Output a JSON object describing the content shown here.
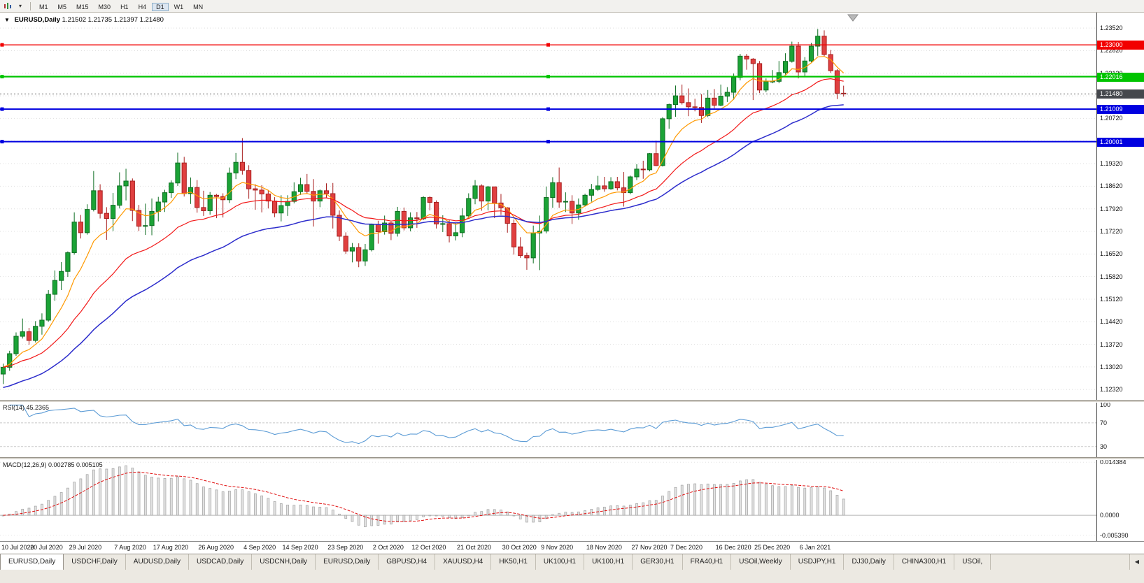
{
  "toolbar": {
    "timeframes": [
      "M1",
      "M5",
      "M15",
      "M30",
      "H1",
      "H4",
      "D1",
      "W1",
      "MN"
    ],
    "active_timeframe": "D1",
    "caret_glyph": "▾"
  },
  "chart": {
    "symbol_period": "EURUSD,Daily",
    "ohlc_text": "1.21502 1.21735 1.21397 1.21480",
    "collapse_glyph": "▼",
    "price_min": 1.12,
    "price_max": 1.24,
    "y_axis_labels": [
      "1.23520",
      "1.22820",
      "1.22120",
      "1.21420",
      "1.20720",
      "1.20020",
      "1.19320",
      "1.18620",
      "1.17920",
      "1.17220",
      "1.16520",
      "1.15820",
      "1.15120",
      "1.14420",
      "1.13720",
      "1.13020",
      "1.12320"
    ],
    "hlines": [
      {
        "price": 1.23,
        "label": "1.23000",
        "color": "#f20000",
        "thickness": 1.4
      },
      {
        "price": 1.22016,
        "label": "1.22016",
        "color": "#00c400",
        "thickness": 2.2
      },
      {
        "price": 1.21009,
        "label": "1.21009",
        "color": "#0000e0",
        "thickness": 2
      },
      {
        "price": 1.20001,
        "label": "1.20001",
        "color": "#0000e0",
        "thickness": 2
      }
    ],
    "current_price": {
      "value": 1.2148,
      "label": "1.21480",
      "badge_color": "#45484d"
    },
    "up_color": "#1ba336",
    "up_border": "#0e6e22",
    "down_color": "#e04040",
    "down_border": "#a81f1f",
    "moving_averages": [
      {
        "name": "ma-fast-orange",
        "period": 8,
        "color": "#ff9900",
        "width": 1.2
      },
      {
        "name": "ma-mid-red",
        "period": 22,
        "color": "#f21818",
        "width": 1.2
      },
      {
        "name": "ma-slow-blue",
        "period": 40,
        "color": "#2d2dcc",
        "width": 1.5,
        "seed": 1.1235
      }
    ],
    "x_labels": [
      {
        "index": 0,
        "text": "10 Jul 2020"
      },
      {
        "index": 7,
        "text": "20 Jul 2020"
      },
      {
        "index": 13,
        "text": "29 Jul 2020"
      },
      {
        "index": 20,
        "text": "7 Aug 2020"
      },
      {
        "index": 26,
        "text": "17 Aug 2020"
      },
      {
        "index": 33,
        "text": "26 Aug 2020"
      },
      {
        "index": 40,
        "text": "4 Sep 2020"
      },
      {
        "index": 46,
        "text": "14 Sep 2020"
      },
      {
        "index": 53,
        "text": "23 Sep 2020"
      },
      {
        "index": 60,
        "text": "2 Oct 2020"
      },
      {
        "index": 66,
        "text": "12 Oct 2020"
      },
      {
        "index": 73,
        "text": "21 Oct 2020"
      },
      {
        "index": 80,
        "text": "30 Oct 2020"
      },
      {
        "index": 86,
        "text": "9 Nov 2020"
      },
      {
        "index": 93,
        "text": "18 Nov 2020"
      },
      {
        "index": 100,
        "text": "27 Nov 2020"
      },
      {
        "index": 106,
        "text": "7 Dec 2020"
      },
      {
        "index": 113,
        "text": "16 Dec 2020"
      },
      {
        "index": 119,
        "text": "25 Dec 2020"
      },
      {
        "index": 126,
        "text": "6 Jan 2021"
      }
    ],
    "candles": [
      [
        1.128,
        1.1312,
        1.1249,
        1.1301
      ],
      [
        1.1301,
        1.1352,
        1.129,
        1.1343
      ],
      [
        1.1343,
        1.1409,
        1.1336,
        1.1397
      ],
      [
        1.1397,
        1.1452,
        1.139,
        1.1411
      ],
      [
        1.1411,
        1.1423,
        1.1371,
        1.1384
      ],
      [
        1.1384,
        1.1444,
        1.1378,
        1.1428
      ],
      [
        1.1428,
        1.1468,
        1.1402,
        1.1447
      ],
      [
        1.1447,
        1.154,
        1.1442,
        1.1527
      ],
      [
        1.1527,
        1.1601,
        1.1507,
        1.157
      ],
      [
        1.157,
        1.1627,
        1.154,
        1.1598
      ],
      [
        1.1598,
        1.166,
        1.1581,
        1.1656
      ],
      [
        1.1656,
        1.1781,
        1.165,
        1.1751
      ],
      [
        1.1751,
        1.1773,
        1.17,
        1.1718
      ],
      [
        1.1718,
        1.1806,
        1.1712,
        1.179
      ],
      [
        1.179,
        1.1909,
        1.1784,
        1.1848
      ],
      [
        1.1848,
        1.1868,
        1.1762,
        1.1778
      ],
      [
        1.1778,
        1.1797,
        1.1696,
        1.1762
      ],
      [
        1.1762,
        1.1841,
        1.1723,
        1.1803
      ],
      [
        1.1803,
        1.1905,
        1.1793,
        1.1863
      ],
      [
        1.1863,
        1.1916,
        1.1818,
        1.1878
      ],
      [
        1.1878,
        1.1886,
        1.1754,
        1.1787
      ],
      [
        1.1787,
        1.1804,
        1.1723,
        1.1738
      ],
      [
        1.1738,
        1.1808,
        1.1711,
        1.174
      ],
      [
        1.174,
        1.1824,
        1.171,
        1.1784
      ],
      [
        1.1784,
        1.1829,
        1.1753,
        1.1813
      ],
      [
        1.1813,
        1.1851,
        1.1782,
        1.1842
      ],
      [
        1.1842,
        1.188,
        1.1826,
        1.1872
      ],
      [
        1.1872,
        1.1966,
        1.1863,
        1.1934
      ],
      [
        1.1934,
        1.1953,
        1.183,
        1.1839
      ],
      [
        1.1839,
        1.1889,
        1.1807,
        1.1858
      ],
      [
        1.1858,
        1.1881,
        1.178,
        1.1796
      ],
      [
        1.1796,
        1.1848,
        1.177,
        1.1786
      ],
      [
        1.1786,
        1.1844,
        1.1774,
        1.1834
      ],
      [
        1.1834,
        1.1838,
        1.1763,
        1.183
      ],
      [
        1.183,
        1.184,
        1.1765,
        1.182
      ],
      [
        1.182,
        1.192,
        1.181,
        1.1903
      ],
      [
        1.1903,
        1.1965,
        1.1884,
        1.1936
      ],
      [
        1.1936,
        1.2011,
        1.1898,
        1.1911
      ],
      [
        1.1911,
        1.1927,
        1.1823,
        1.1854
      ],
      [
        1.1854,
        1.1868,
        1.1789,
        1.185
      ],
      [
        1.185,
        1.1865,
        1.1781,
        1.1838
      ],
      [
        1.1838,
        1.185,
        1.1793,
        1.1816
      ],
      [
        1.1816,
        1.1828,
        1.1766,
        1.1779
      ],
      [
        1.1779,
        1.1834,
        1.1753,
        1.1802
      ],
      [
        1.1802,
        1.1834,
        1.177,
        1.1815
      ],
      [
        1.1815,
        1.1874,
        1.1809,
        1.1845
      ],
      [
        1.1845,
        1.1888,
        1.1835,
        1.1867
      ],
      [
        1.1867,
        1.19,
        1.1838,
        1.1846
      ],
      [
        1.1846,
        1.1884,
        1.1737,
        1.1816
      ],
      [
        1.1816,
        1.1852,
        1.1797,
        1.1848
      ],
      [
        1.1848,
        1.1871,
        1.1827,
        1.1839
      ],
      [
        1.1839,
        1.1872,
        1.1731,
        1.1772
      ],
      [
        1.1772,
        1.1787,
        1.1692,
        1.1707
      ],
      [
        1.1707,
        1.1719,
        1.1652,
        1.1661
      ],
      [
        1.1661,
        1.1686,
        1.1626,
        1.1672
      ],
      [
        1.1672,
        1.1685,
        1.1611,
        1.163
      ],
      [
        1.163,
        1.1683,
        1.1615,
        1.1665
      ],
      [
        1.1665,
        1.1746,
        1.166,
        1.1743
      ],
      [
        1.1743,
        1.1755,
        1.1684,
        1.1721
      ],
      [
        1.1721,
        1.1771,
        1.1712,
        1.1748
      ],
      [
        1.1748,
        1.1752,
        1.1695,
        1.1716
      ],
      [
        1.1716,
        1.1798,
        1.1706,
        1.1784
      ],
      [
        1.1784,
        1.1796,
        1.1725,
        1.1733
      ],
      [
        1.1733,
        1.1781,
        1.1722,
        1.1764
      ],
      [
        1.1764,
        1.1782,
        1.1733,
        1.1761
      ],
      [
        1.1761,
        1.1831,
        1.1757,
        1.1827
      ],
      [
        1.1827,
        1.1831,
        1.1787,
        1.1812
      ],
      [
        1.1812,
        1.1818,
        1.1731,
        1.1745
      ],
      [
        1.1745,
        1.1772,
        1.172,
        1.1746
      ],
      [
        1.1746,
        1.1758,
        1.1688,
        1.1708
      ],
      [
        1.1708,
        1.1747,
        1.1694,
        1.1718
      ],
      [
        1.1718,
        1.1794,
        1.1704,
        1.177
      ],
      [
        1.177,
        1.184,
        1.1761,
        1.1824
      ],
      [
        1.1824,
        1.1881,
        1.1806,
        1.1863
      ],
      [
        1.1863,
        1.1868,
        1.1786,
        1.1816
      ],
      [
        1.1816,
        1.1863,
        1.1787,
        1.186
      ],
      [
        1.186,
        1.186,
        1.1763,
        1.181
      ],
      [
        1.181,
        1.1838,
        1.1773,
        1.1795
      ],
      [
        1.1795,
        1.1797,
        1.1718,
        1.1747
      ],
      [
        1.1747,
        1.1759,
        1.165,
        1.1674
      ],
      [
        1.1674,
        1.1704,
        1.164,
        1.1647
      ],
      [
        1.1647,
        1.1656,
        1.1603,
        1.164
      ],
      [
        1.164,
        1.174,
        1.1623,
        1.1717
      ],
      [
        1.1717,
        1.1771,
        1.1602,
        1.1723
      ],
      [
        1.1723,
        1.1861,
        1.1716,
        1.1827
      ],
      [
        1.1827,
        1.189,
        1.1795,
        1.1873
      ],
      [
        1.1873,
        1.192,
        1.1795,
        1.1813
      ],
      [
        1.1813,
        1.1843,
        1.1782,
        1.1815
      ],
      [
        1.1815,
        1.1834,
        1.1745,
        1.1779
      ],
      [
        1.1779,
        1.1824,
        1.1758,
        1.1804
      ],
      [
        1.1804,
        1.1839,
        1.1799,
        1.1834
      ],
      [
        1.1834,
        1.1869,
        1.1814,
        1.1852
      ],
      [
        1.1852,
        1.1894,
        1.1847,
        1.1863
      ],
      [
        1.1863,
        1.1891,
        1.1845,
        1.1854
      ],
      [
        1.1854,
        1.189,
        1.1851,
        1.1876
      ],
      [
        1.1876,
        1.1891,
        1.1849,
        1.1857
      ],
      [
        1.1857,
        1.1906,
        1.1799,
        1.1842
      ],
      [
        1.1842,
        1.1895,
        1.1837,
        1.1891
      ],
      [
        1.1891,
        1.193,
        1.1881,
        1.1915
      ],
      [
        1.1915,
        1.1941,
        1.1885,
        1.1913
      ],
      [
        1.1913,
        1.1965,
        1.1908,
        1.1963
      ],
      [
        1.1963,
        1.2003,
        1.1924,
        1.1926
      ],
      [
        1.1926,
        1.2076,
        1.1923,
        1.2071
      ],
      [
        1.2071,
        1.2118,
        1.204,
        1.2115
      ],
      [
        1.2115,
        1.2174,
        1.2077,
        1.2142
      ],
      [
        1.2142,
        1.2177,
        1.2115,
        1.2121
      ],
      [
        1.2121,
        1.2165,
        1.2079,
        1.2108
      ],
      [
        1.2108,
        1.2133,
        1.2094,
        1.2106
      ],
      [
        1.2106,
        1.2147,
        1.2058,
        1.2081
      ],
      [
        1.2081,
        1.216,
        1.2076,
        1.2135
      ],
      [
        1.2135,
        1.2163,
        1.2103,
        1.2113
      ],
      [
        1.2113,
        1.2177,
        1.211,
        1.2141
      ],
      [
        1.2141,
        1.2169,
        1.2123,
        1.2153
      ],
      [
        1.2153,
        1.2211,
        1.213,
        1.2199
      ],
      [
        1.2199,
        1.2272,
        1.219,
        1.2265
      ],
      [
        1.2265,
        1.2272,
        1.2223,
        1.2256
      ],
      [
        1.2256,
        1.2259,
        1.2129,
        1.2242
      ],
      [
        1.2242,
        1.225,
        1.2151,
        1.216
      ],
      [
        1.216,
        1.2196,
        1.2153,
        1.2187
      ],
      [
        1.2187,
        1.2222,
        1.2181,
        1.2187
      ],
      [
        1.2187,
        1.225,
        1.2181,
        1.2214
      ],
      [
        1.2214,
        1.2274,
        1.2208,
        1.2249
      ],
      [
        1.2249,
        1.231,
        1.2245,
        1.2296
      ],
      [
        1.2296,
        1.2309,
        1.2196,
        1.2216
      ],
      [
        1.2216,
        1.2262,
        1.22,
        1.225
      ],
      [
        1.225,
        1.2306,
        1.2246,
        1.2296
      ],
      [
        1.2296,
        1.2349,
        1.2266,
        1.2327
      ],
      [
        1.2327,
        1.2345,
        1.2265,
        1.227
      ],
      [
        1.227,
        1.2284,
        1.2213,
        1.222
      ],
      [
        1.222,
        1.2225,
        1.2132,
        1.215
      ],
      [
        1.21502,
        1.21735,
        1.21397,
        1.2148
      ]
    ]
  },
  "rsi": {
    "label": "RSI(14) 45.2365",
    "period": 14,
    "line_color": "#5b9bd5",
    "scale_min": 12,
    "scale_max": 104,
    "levels": [
      {
        "value": 100,
        "label": "100",
        "dashed": false
      },
      {
        "value": 70,
        "label": "70",
        "dashed": true
      },
      {
        "value": 30,
        "label": "30",
        "dashed": true
      }
    ]
  },
  "macd": {
    "label": "MACD(12,26,9) 0.002785 0.005105",
    "fast": 12,
    "slow": 26,
    "signal": 9,
    "hist_fill": "#e2e2e2",
    "hist_border": "#a6a6a6",
    "signal_color": "#e01010",
    "scale_min": -0.007,
    "scale_max": 0.015,
    "axis_labels": [
      {
        "value": 0.014384,
        "label": "0.014384",
        "style": "dashed"
      },
      {
        "value": 0,
        "label": "0.0000",
        "style": "zero"
      },
      {
        "value": -0.00539,
        "label": "-0.005390",
        "style": "dashed"
      }
    ]
  },
  "tabs": {
    "active_index": 0,
    "scroll_glyph": "◀",
    "items": [
      "EURUSD,Daily",
      "USDCHF,Daily",
      "AUDUSD,Daily",
      "USDCAD,Daily",
      "USDCNH,Daily",
      "EURUSD,Daily",
      "GBPUSD,H4",
      "XAUUSD,H4",
      "HK50,H1",
      "UK100,H1",
      "UK100,H1",
      "GER30,H1",
      "FRA40,H1",
      "USOil,Weekly",
      "USDJPY,H1",
      "DJ30,Daily",
      "CHINA300,H1",
      "USOil,"
    ]
  }
}
